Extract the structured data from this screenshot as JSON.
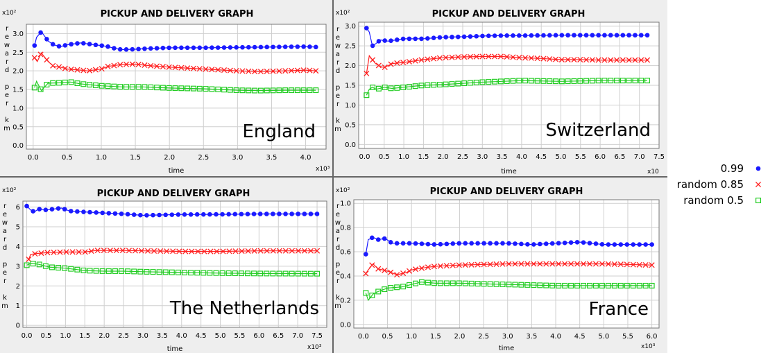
{
  "legend": [
    {
      "label": "0.99",
      "color": "#1a1aff",
      "marker": "filled-circle"
    },
    {
      "label": "random 0.85",
      "color": "#ff2020",
      "marker": "cross"
    },
    {
      "label": "random 0.5",
      "color": "#22cc22",
      "marker": "open-square"
    }
  ],
  "chart_data": [
    {
      "type": "line",
      "title": "PICKUP AND DELIVERY GRAPH",
      "country": "England",
      "xlabel": "time",
      "ylabel": "reward per km",
      "x_multiplier": "x10³",
      "y_multiplier": "x10²",
      "xlim": [
        -0.1,
        4.3
      ],
      "ylim": [
        -0.1,
        3.25
      ],
      "xticks": [
        0.0,
        0.5,
        1.0,
        1.5,
        2.0,
        2.5,
        3.0,
        3.5,
        4.0
      ],
      "yticks": [
        0.0,
        0.5,
        1.0,
        1.5,
        2.0,
        2.5,
        3.0
      ],
      "series": [
        {
          "name": "0.99",
          "points": [
            [
              0.02,
              2.68
            ],
            [
              0.05,
              2.9
            ],
            [
              0.12,
              3.05
            ],
            [
              0.22,
              2.8
            ],
            [
              0.3,
              2.7
            ],
            [
              0.4,
              2.65
            ],
            [
              0.5,
              2.7
            ],
            [
              0.7,
              2.75
            ],
            [
              0.9,
              2.7
            ],
            [
              1.0,
              2.68
            ],
            [
              1.1,
              2.65
            ],
            [
              1.2,
              2.6
            ],
            [
              1.3,
              2.57
            ],
            [
              1.5,
              2.58
            ],
            [
              1.7,
              2.6
            ],
            [
              2.0,
              2.62
            ],
            [
              2.5,
              2.62
            ],
            [
              3.0,
              2.63
            ],
            [
              3.5,
              2.64
            ],
            [
              4.0,
              2.65
            ],
            [
              4.15,
              2.64
            ]
          ]
        },
        {
          "name": "random 0.85",
          "points": [
            [
              0.02,
              2.35
            ],
            [
              0.06,
              2.25
            ],
            [
              0.12,
              2.48
            ],
            [
              0.22,
              2.25
            ],
            [
              0.3,
              2.12
            ],
            [
              0.4,
              2.1
            ],
            [
              0.5,
              2.05
            ],
            [
              0.7,
              2.02
            ],
            [
              0.8,
              2.0
            ],
            [
              1.0,
              2.05
            ],
            [
              1.1,
              2.12
            ],
            [
              1.3,
              2.17
            ],
            [
              1.5,
              2.18
            ],
            [
              1.7,
              2.14
            ],
            [
              2.0,
              2.1
            ],
            [
              2.5,
              2.05
            ],
            [
              3.0,
              2.0
            ],
            [
              3.3,
              1.98
            ],
            [
              3.7,
              2.0
            ],
            [
              4.0,
              2.02
            ],
            [
              4.15,
              2.0
            ]
          ]
        },
        {
          "name": "random 0.5",
          "points": [
            [
              0.02,
              1.55
            ],
            [
              0.05,
              1.72
            ],
            [
              0.12,
              1.47
            ],
            [
              0.22,
              1.67
            ],
            [
              0.4,
              1.68
            ],
            [
              0.55,
              1.7
            ],
            [
              0.7,
              1.65
            ],
            [
              1.0,
              1.6
            ],
            [
              1.3,
              1.57
            ],
            [
              1.6,
              1.57
            ],
            [
              2.0,
              1.54
            ],
            [
              2.5,
              1.52
            ],
            [
              3.0,
              1.48
            ],
            [
              3.3,
              1.47
            ],
            [
              3.7,
              1.48
            ],
            [
              4.15,
              1.48
            ]
          ]
        }
      ]
    },
    {
      "type": "line",
      "title": "PICKUP AND DELIVERY GRAPH",
      "country": "Switzerland",
      "xlabel": "time",
      "ylabel": "reward per km",
      "x_multiplier": "x10",
      "y_multiplier": "x10²",
      "xlim": [
        -0.15,
        7.5
      ],
      "ylim": [
        -0.1,
        3.1
      ],
      "xticks": [
        0.0,
        0.5,
        1.0,
        1.5,
        2.0,
        2.5,
        3.0,
        3.5,
        4.0,
        4.5,
        5.0,
        5.5,
        6.0,
        6.5,
        7.0,
        7.5
      ],
      "yticks": [
        0.0,
        0.5,
        1.0,
        1.5,
        2.0,
        2.5,
        3.0
      ],
      "series": [
        {
          "name": "0.99",
          "points": [
            [
              0.05,
              2.95
            ],
            [
              0.12,
              2.85
            ],
            [
              0.2,
              2.5
            ],
            [
              0.28,
              2.55
            ],
            [
              0.4,
              2.65
            ],
            [
              0.6,
              2.62
            ],
            [
              0.8,
              2.65
            ],
            [
              1.0,
              2.68
            ],
            [
              1.5,
              2.68
            ],
            [
              2.0,
              2.72
            ],
            [
              2.5,
              2.73
            ],
            [
              3.0,
              2.75
            ],
            [
              3.5,
              2.76
            ],
            [
              4.0,
              2.76
            ],
            [
              5.0,
              2.77
            ],
            [
              6.0,
              2.77
            ],
            [
              7.2,
              2.77
            ]
          ]
        },
        {
          "name": "random 0.85",
          "points": [
            [
              0.05,
              1.8
            ],
            [
              0.12,
              2.25
            ],
            [
              0.2,
              2.15
            ],
            [
              0.28,
              2.05
            ],
            [
              0.4,
              1.98
            ],
            [
              0.5,
              1.95
            ],
            [
              0.7,
              2.05
            ],
            [
              1.0,
              2.08
            ],
            [
              1.5,
              2.15
            ],
            [
              2.0,
              2.2
            ],
            [
              2.5,
              2.22
            ],
            [
              3.0,
              2.23
            ],
            [
              3.5,
              2.23
            ],
            [
              4.0,
              2.2
            ],
            [
              4.5,
              2.18
            ],
            [
              5.0,
              2.15
            ],
            [
              5.5,
              2.15
            ],
            [
              6.0,
              2.14
            ],
            [
              6.5,
              2.14
            ],
            [
              7.2,
              2.14
            ]
          ]
        },
        {
          "name": "random 0.5",
          "points": [
            [
              0.05,
              1.25
            ],
            [
              0.12,
              1.4
            ],
            [
              0.2,
              1.45
            ],
            [
              0.3,
              1.4
            ],
            [
              0.5,
              1.45
            ],
            [
              0.7,
              1.42
            ],
            [
              1.0,
              1.45
            ],
            [
              1.5,
              1.5
            ],
            [
              2.0,
              1.52
            ],
            [
              2.5,
              1.55
            ],
            [
              3.0,
              1.58
            ],
            [
              3.5,
              1.6
            ],
            [
              4.0,
              1.62
            ],
            [
              5.0,
              1.6
            ],
            [
              6.0,
              1.62
            ],
            [
              7.2,
              1.62
            ]
          ]
        }
      ]
    },
    {
      "type": "line",
      "title": "PICKUP AND DELIVERY GRAPH",
      "country": "The Netherlands",
      "xlabel": "time",
      "ylabel": "reward per km",
      "x_multiplier": "x10³",
      "y_multiplier": "x10²",
      "xlim": [
        -0.1,
        7.75
      ],
      "ylim": [
        -0.1,
        6.3
      ],
      "xticks": [
        0.0,
        0.5,
        1.0,
        1.5,
        2.0,
        2.5,
        3.0,
        3.5,
        4.0,
        4.5,
        5.0,
        5.5,
        6.0,
        6.5,
        7.0,
        7.5
      ],
      "yticks": [
        0,
        1,
        2,
        3,
        4,
        5,
        6
      ],
      "series": [
        {
          "name": "0.99",
          "points": [
            [
              0.0,
              6.05
            ],
            [
              0.1,
              5.85
            ],
            [
              0.2,
              5.75
            ],
            [
              0.3,
              5.9
            ],
            [
              0.5,
              5.85
            ],
            [
              0.7,
              5.9
            ],
            [
              0.9,
              5.95
            ],
            [
              1.1,
              5.8
            ],
            [
              1.5,
              5.75
            ],
            [
              2.0,
              5.7
            ],
            [
              2.5,
              5.65
            ],
            [
              3.0,
              5.58
            ],
            [
              3.5,
              5.6
            ],
            [
              4.0,
              5.62
            ],
            [
              5.0,
              5.63
            ],
            [
              6.0,
              5.65
            ],
            [
              7.0,
              5.65
            ],
            [
              7.5,
              5.65
            ]
          ]
        },
        {
          "name": "random 0.85",
          "points": [
            [
              0.05,
              3.35
            ],
            [
              0.1,
              3.6
            ],
            [
              0.3,
              3.65
            ],
            [
              0.6,
              3.7
            ],
            [
              1.0,
              3.72
            ],
            [
              1.5,
              3.72
            ],
            [
              1.8,
              3.8
            ],
            [
              2.5,
              3.8
            ],
            [
              3.0,
              3.78
            ],
            [
              4.0,
              3.75
            ],
            [
              5.0,
              3.75
            ],
            [
              6.0,
              3.78
            ],
            [
              7.0,
              3.78
            ],
            [
              7.5,
              3.78
            ]
          ]
        },
        {
          "name": "random 0.5",
          "points": [
            [
              0.0,
              3.05
            ],
            [
              0.1,
              3.15
            ],
            [
              0.3,
              3.1
            ],
            [
              0.6,
              2.95
            ],
            [
              1.0,
              2.9
            ],
            [
              1.5,
              2.78
            ],
            [
              2.0,
              2.75
            ],
            [
              2.5,
              2.75
            ],
            [
              3.0,
              2.72
            ],
            [
              4.0,
              2.68
            ],
            [
              5.0,
              2.65
            ],
            [
              6.0,
              2.63
            ],
            [
              7.5,
              2.62
            ]
          ]
        }
      ]
    },
    {
      "type": "line",
      "title": "PICKUP AND DELIVERY GRAPH",
      "country": "France",
      "xlabel": "time",
      "ylabel": "reward per km",
      "x_multiplier": "x10³",
      "y_multiplier": "x10²",
      "xlim": [
        -0.2,
        6.15
      ],
      "ylim": [
        -0.03,
        1.03
      ],
      "xticks": [
        0.0,
        0.5,
        1.0,
        1.5,
        2.0,
        2.5,
        3.0,
        3.5,
        4.0,
        4.5,
        5.0,
        5.5,
        6.0
      ],
      "yticks": [
        0.0,
        0.2,
        0.4,
        0.6,
        0.8,
        1.0
      ],
      "series": [
        {
          "name": "0.99",
          "points": [
            [
              0.05,
              0.58
            ],
            [
              0.1,
              0.7
            ],
            [
              0.2,
              0.72
            ],
            [
              0.3,
              0.7
            ],
            [
              0.45,
              0.71
            ],
            [
              0.6,
              0.67
            ],
            [
              1.0,
              0.67
            ],
            [
              1.5,
              0.66
            ],
            [
              2.0,
              0.67
            ],
            [
              2.5,
              0.67
            ],
            [
              3.0,
              0.67
            ],
            [
              3.5,
              0.66
            ],
            [
              4.0,
              0.67
            ],
            [
              4.5,
              0.68
            ],
            [
              5.0,
              0.66
            ],
            [
              5.5,
              0.66
            ],
            [
              6.0,
              0.66
            ]
          ]
        },
        {
          "name": "random 0.85",
          "points": [
            [
              0.05,
              0.42
            ],
            [
              0.1,
              0.45
            ],
            [
              0.2,
              0.5
            ],
            [
              0.3,
              0.46
            ],
            [
              0.5,
              0.44
            ],
            [
              0.7,
              0.41
            ],
            [
              0.9,
              0.43
            ],
            [
              1.0,
              0.45
            ],
            [
              1.3,
              0.47
            ],
            [
              1.5,
              0.48
            ],
            [
              2.0,
              0.49
            ],
            [
              3.0,
              0.5
            ],
            [
              4.0,
              0.5
            ],
            [
              5.0,
              0.5
            ],
            [
              6.0,
              0.49
            ]
          ]
        },
        {
          "name": "random 0.5",
          "points": [
            [
              0.05,
              0.26
            ],
            [
              0.1,
              0.2
            ],
            [
              0.2,
              0.25
            ],
            [
              0.3,
              0.27
            ],
            [
              0.5,
              0.3
            ],
            [
              0.8,
              0.31
            ],
            [
              1.0,
              0.33
            ],
            [
              1.2,
              0.35
            ],
            [
              1.5,
              0.34
            ],
            [
              2.0,
              0.34
            ],
            [
              3.0,
              0.33
            ],
            [
              4.0,
              0.32
            ],
            [
              5.0,
              0.32
            ],
            [
              6.0,
              0.32
            ]
          ]
        }
      ]
    }
  ]
}
